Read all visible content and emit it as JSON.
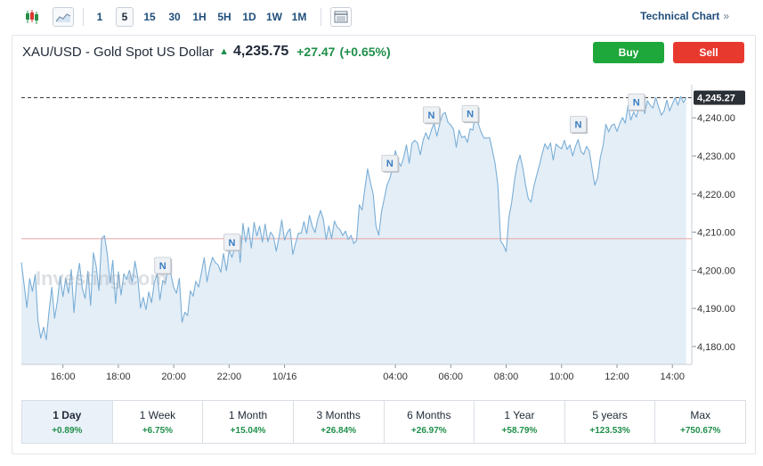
{
  "toolbar": {
    "timeframes": [
      "1",
      "5",
      "15",
      "30",
      "1H",
      "5H",
      "1D",
      "1W",
      "1M"
    ],
    "active_timeframe": "5",
    "technical_link": "Technical Chart",
    "technical_link_arrow": "»",
    "icons": [
      "candlestick-icon",
      "area-chart-icon",
      "table-icon"
    ]
  },
  "instrument": {
    "name": "XAU/USD - Gold Spot US Dollar",
    "direction_arrow": "▲",
    "price": "4,235.75",
    "change": "+27.47",
    "change_pct": "(+0.65%)",
    "buy_label": "Buy",
    "sell_label": "Sell"
  },
  "chart_data": {
    "type": "area",
    "x_tick_labels": [
      "16:00",
      "18:00",
      "20:00",
      "22:00",
      "10/16",
      "04:00",
      "06:00",
      "08:00",
      "10:00",
      "12:00",
      "14:00"
    ],
    "y_tick_labels": [
      "4,240.00",
      "4,230.00",
      "4,220.00",
      "4,210.00",
      "4,200.00",
      "4,190.00",
      "4,180.00"
    ],
    "y_ticks": [
      4240,
      4230,
      4220,
      4210,
      4200,
      4190,
      4180
    ],
    "ylim": [
      4175.3,
      4248.7
    ],
    "x_tick_times": [
      1.5,
      3.5,
      5.5,
      7.5,
      9.5,
      13.5,
      15.5,
      17.5,
      19.5,
      21.5,
      23.5
    ],
    "xlim": [
      0,
      24.2
    ],
    "current_price_label": "4,245.27",
    "current_price": 4245.27,
    "reference_line_value": 4208.3,
    "watermark": "Investing.com",
    "news_markers": [
      {
        "label": "N",
        "t": 5.1
      },
      {
        "label": "N",
        "t": 7.6
      },
      {
        "label": "N",
        "t": 13.3
      },
      {
        "label": "N",
        "t": 14.8
      },
      {
        "label": "N",
        "t": 16.2
      },
      {
        "label": "N",
        "t": 20.1
      },
      {
        "label": "N",
        "t": 22.2
      }
    ],
    "line_color": "#7aaed6",
    "fill_color": "#e4eef7",
    "reference_color": "#e8a2a2",
    "series": [
      {
        "values": [
          [
            0.0,
            4202.1
          ],
          [
            0.1,
            4196.3
          ],
          [
            0.2,
            4190.2
          ],
          [
            0.3,
            4197.8
          ],
          [
            0.4,
            4194.5
          ],
          [
            0.5,
            4198.9
          ],
          [
            0.6,
            4186.7
          ],
          [
            0.7,
            4182.2
          ],
          [
            0.8,
            4185.1
          ],
          [
            0.9,
            4181.8
          ],
          [
            1.0,
            4189.3
          ],
          [
            1.1,
            4195.6
          ],
          [
            1.2,
            4187.4
          ],
          [
            1.3,
            4192.0
          ],
          [
            1.4,
            4198.4
          ],
          [
            1.5,
            4193.1
          ],
          [
            1.6,
            4197.8
          ],
          [
            1.7,
            4194.0
          ],
          [
            1.8,
            4200.2
          ],
          [
            1.9,
            4188.9
          ],
          [
            2.0,
            4197.5
          ],
          [
            2.1,
            4201.8
          ],
          [
            2.2,
            4195.2
          ],
          [
            2.3,
            4192.6
          ],
          [
            2.4,
            4199.7
          ],
          [
            2.5,
            4190.8
          ],
          [
            2.6,
            4204.6
          ],
          [
            2.7,
            4201.1
          ],
          [
            2.8,
            4194.7
          ],
          [
            2.9,
            4208.3
          ],
          [
            3.0,
            4209.1
          ],
          [
            3.1,
            4204.3
          ],
          [
            3.2,
            4196.7
          ],
          [
            3.3,
            4202.6
          ],
          [
            3.4,
            4191.3
          ],
          [
            3.5,
            4199.6
          ],
          [
            3.6,
            4193.5
          ],
          [
            3.7,
            4199.1
          ],
          [
            3.8,
            4197.6
          ],
          [
            3.9,
            4200.0
          ],
          [
            4.0,
            4196.8
          ],
          [
            4.1,
            4202.4
          ],
          [
            4.2,
            4198.2
          ],
          [
            4.3,
            4190.1
          ],
          [
            4.4,
            4192.9
          ],
          [
            4.5,
            4189.7
          ],
          [
            4.6,
            4194.3
          ],
          [
            4.7,
            4191.5
          ],
          [
            4.8,
            4196.9
          ],
          [
            4.9,
            4199.0
          ],
          [
            5.0,
            4192.2
          ],
          [
            5.1,
            4197.3
          ],
          [
            5.2,
            4196.7
          ],
          [
            5.3,
            4201.1
          ],
          [
            5.4,
            4198.9
          ],
          [
            5.5,
            4195.5
          ],
          [
            5.6,
            4194.0
          ],
          [
            5.7,
            4197.9
          ],
          [
            5.8,
            4186.3
          ],
          [
            5.9,
            4189.0
          ],
          [
            6.0,
            4188.1
          ],
          [
            6.1,
            4194.6
          ],
          [
            6.2,
            4193.2
          ],
          [
            6.3,
            4197.1
          ],
          [
            6.4,
            4195.6
          ],
          [
            6.5,
            4199.4
          ],
          [
            6.6,
            4203.3
          ],
          [
            6.7,
            4197.0
          ],
          [
            6.8,
            4200.7
          ],
          [
            6.9,
            4203.4
          ],
          [
            7.0,
            4202.0
          ],
          [
            7.1,
            4201.5
          ],
          [
            7.2,
            4199.5
          ],
          [
            7.3,
            4204.4
          ],
          [
            7.4,
            4199.9
          ],
          [
            7.5,
            4205.4
          ],
          [
            7.6,
            4203.4
          ],
          [
            7.7,
            4205.8
          ],
          [
            7.8,
            4209.3
          ],
          [
            7.9,
            4202.1
          ],
          [
            8.0,
            4212.3
          ],
          [
            8.1,
            4207.4
          ],
          [
            8.2,
            4211.3
          ],
          [
            8.3,
            4205.8
          ],
          [
            8.4,
            4212.6
          ],
          [
            8.5,
            4209.0
          ],
          [
            8.6,
            4211.6
          ],
          [
            8.7,
            4207.4
          ],
          [
            8.8,
            4212.1
          ],
          [
            8.9,
            4207.5
          ],
          [
            9.0,
            4210.0
          ],
          [
            9.1,
            4208.8
          ],
          [
            9.2,
            4205.0
          ],
          [
            9.3,
            4208.7
          ],
          [
            9.4,
            4213.2
          ],
          [
            9.5,
            4207.9
          ],
          [
            9.6,
            4209.9
          ],
          [
            9.7,
            4210.9
          ],
          [
            9.8,
            4204.2
          ],
          [
            9.9,
            4207.1
          ],
          [
            10.0,
            4209.7
          ],
          [
            10.1,
            4209.7
          ],
          [
            10.2,
            4212.8
          ],
          [
            10.3,
            4209.6
          ],
          [
            10.4,
            4214.4
          ],
          [
            10.5,
            4211.6
          ],
          [
            10.6,
            4209.9
          ],
          [
            10.7,
            4213.4
          ],
          [
            10.8,
            4215.7
          ],
          [
            10.9,
            4213.3
          ],
          [
            11.0,
            4208.1
          ],
          [
            11.1,
            4211.6
          ],
          [
            11.2,
            4208.3
          ],
          [
            11.3,
            4212.9
          ],
          [
            11.4,
            4211.3
          ],
          [
            11.5,
            4210.7
          ],
          [
            11.6,
            4209.1
          ],
          [
            11.7,
            4210.3
          ],
          [
            11.8,
            4208.1
          ],
          [
            11.9,
            4209.2
          ],
          [
            12.0,
            4207.0
          ],
          [
            12.1,
            4207.8
          ],
          [
            12.2,
            4217.2
          ],
          [
            12.3,
            4215.8
          ],
          [
            12.4,
            4221.4
          ],
          [
            12.5,
            4226.6
          ],
          [
            12.6,
            4223.0
          ],
          [
            12.7,
            4219.9
          ],
          [
            12.8,
            4211.6
          ],
          [
            12.9,
            4209.2
          ],
          [
            13.0,
            4215.3
          ],
          [
            13.1,
            4218.8
          ],
          [
            13.2,
            4222.3
          ],
          [
            13.3,
            4224.1
          ],
          [
            13.4,
            4226.8
          ],
          [
            13.5,
            4231.4
          ],
          [
            13.6,
            4228.6
          ],
          [
            13.7,
            4227.3
          ],
          [
            13.8,
            4229.6
          ],
          [
            13.9,
            4232.9
          ],
          [
            14.0,
            4228.1
          ],
          [
            14.1,
            4233.3
          ],
          [
            14.2,
            4234.1
          ],
          [
            14.3,
            4233.4
          ],
          [
            14.4,
            4230.3
          ],
          [
            14.5,
            4234.1
          ],
          [
            14.6,
            4236.1
          ],
          [
            14.7,
            4234.3
          ],
          [
            14.8,
            4236.8
          ],
          [
            14.9,
            4238.5
          ],
          [
            15.0,
            4235.2
          ],
          [
            15.1,
            4238.3
          ],
          [
            15.2,
            4240.9
          ],
          [
            15.3,
            4241.4
          ],
          [
            15.4,
            4238.8
          ],
          [
            15.5,
            4238.1
          ],
          [
            15.6,
            4237.0
          ],
          [
            15.7,
            4232.3
          ],
          [
            15.8,
            4236.8
          ],
          [
            15.9,
            4234.8
          ],
          [
            16.0,
            4235.2
          ],
          [
            16.1,
            4233.6
          ],
          [
            16.2,
            4237.1
          ],
          [
            16.3,
            4236.8
          ],
          [
            16.4,
            4242.3
          ],
          [
            16.5,
            4238.3
          ],
          [
            16.6,
            4236.2
          ],
          [
            16.7,
            4234.7
          ],
          [
            16.8,
            4234.7
          ],
          [
            16.9,
            4234.8
          ],
          [
            17.0,
            4231.5
          ],
          [
            17.1,
            4228.0
          ],
          [
            17.2,
            4222.3
          ],
          [
            17.3,
            4207.7
          ],
          [
            17.4,
            4206.6
          ],
          [
            17.5,
            4204.9
          ],
          [
            17.6,
            4213.9
          ],
          [
            17.7,
            4217.8
          ],
          [
            17.8,
            4223.6
          ],
          [
            17.9,
            4227.9
          ],
          [
            18.0,
            4230.2
          ],
          [
            18.1,
            4226.9
          ],
          [
            18.2,
            4222.4
          ],
          [
            18.3,
            4218.8
          ],
          [
            18.4,
            4217.9
          ],
          [
            18.5,
            4222.0
          ],
          [
            18.6,
            4224.9
          ],
          [
            18.7,
            4227.6
          ],
          [
            18.8,
            4230.6
          ],
          [
            18.9,
            4233.2
          ],
          [
            19.0,
            4231.8
          ],
          [
            19.1,
            4233.4
          ],
          [
            19.2,
            4228.9
          ],
          [
            19.3,
            4233.1
          ],
          [
            19.4,
            4232.4
          ],
          [
            19.5,
            4231.9
          ],
          [
            19.6,
            4234.1
          ],
          [
            19.7,
            4231.7
          ],
          [
            19.8,
            4232.9
          ],
          [
            19.9,
            4230.0
          ],
          [
            20.0,
            4232.5
          ],
          [
            20.1,
            4234.3
          ],
          [
            20.2,
            4231.2
          ],
          [
            20.3,
            4230.4
          ],
          [
            20.4,
            4232.5
          ],
          [
            20.5,
            4231.3
          ],
          [
            20.6,
            4226.7
          ],
          [
            20.7,
            4222.3
          ],
          [
            20.8,
            4224.3
          ],
          [
            20.9,
            4229.6
          ],
          [
            21.0,
            4232.7
          ],
          [
            21.1,
            4238.3
          ],
          [
            21.2,
            4236.3
          ],
          [
            21.3,
            4238.0
          ],
          [
            21.4,
            4238.4
          ],
          [
            21.5,
            4236.4
          ],
          [
            21.6,
            4238.5
          ],
          [
            21.7,
            4240.1
          ],
          [
            21.8,
            4238.6
          ],
          [
            21.9,
            4243.2
          ],
          [
            22.0,
            4239.4
          ],
          [
            22.1,
            4241.5
          ],
          [
            22.2,
            4240.2
          ],
          [
            22.3,
            4242.9
          ],
          [
            22.4,
            4244.5
          ],
          [
            22.5,
            4241.1
          ],
          [
            22.6,
            4244.5
          ],
          [
            22.7,
            4243.3
          ],
          [
            22.8,
            4242.6
          ],
          [
            22.9,
            4245.3
          ],
          [
            23.0,
            4242.9
          ],
          [
            23.1,
            4240.7
          ],
          [
            23.2,
            4241.8
          ],
          [
            23.3,
            4244.6
          ],
          [
            23.4,
            4241.8
          ],
          [
            23.5,
            4243.6
          ],
          [
            23.6,
            4245.3
          ],
          [
            23.7,
            4243.3
          ],
          [
            23.8,
            4245.6
          ],
          [
            23.9,
            4244.0
          ],
          [
            24.0,
            4245.3
          ]
        ]
      }
    ]
  },
  "ranges": [
    {
      "label": "1 Day",
      "change": "+0.89%",
      "active": true
    },
    {
      "label": "1 Week",
      "change": "+6.75%",
      "active": false
    },
    {
      "label": "1 Month",
      "change": "+15.04%",
      "active": false
    },
    {
      "label": "3 Months",
      "change": "+26.84%",
      "active": false
    },
    {
      "label": "6 Months",
      "change": "+26.97%",
      "active": false
    },
    {
      "label": "1 Year",
      "change": "+58.79%",
      "active": false
    },
    {
      "label": "5 years",
      "change": "+123.53%",
      "active": false
    },
    {
      "label": "Max",
      "change": "+750.67%",
      "active": false
    }
  ]
}
